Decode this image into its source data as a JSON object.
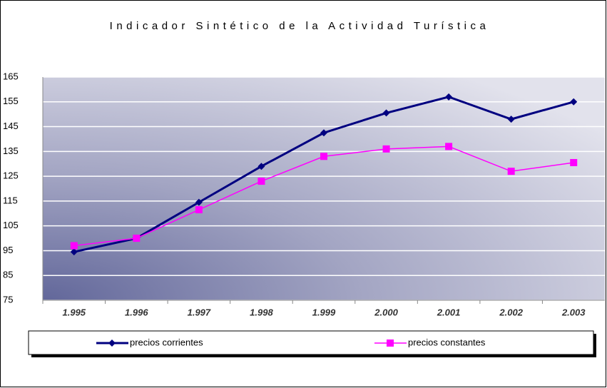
{
  "chart_data": {
    "type": "line",
    "title": "Indicador Sintético de la Actividad Turística",
    "categories": [
      "1.995",
      "1.996",
      "1.997",
      "1.998",
      "1.999",
      "2.000",
      "2.001",
      "2.002",
      "2.003"
    ],
    "series": [
      {
        "name": "precios corrientes",
        "color": "#000080",
        "marker": "diamond",
        "values": [
          94.5,
          100,
          114.5,
          129,
          142.5,
          150.5,
          157,
          148,
          155
        ]
      },
      {
        "name": "precios constantes",
        "color": "#ff00ff",
        "marker": "square",
        "values": [
          97,
          100,
          111.5,
          123,
          133,
          136,
          137,
          127,
          130.5
        ]
      }
    ],
    "ylim": [
      75,
      165
    ],
    "yticks": [
      75,
      85,
      95,
      105,
      115,
      125,
      135,
      145,
      155,
      165
    ],
    "grid": true
  }
}
